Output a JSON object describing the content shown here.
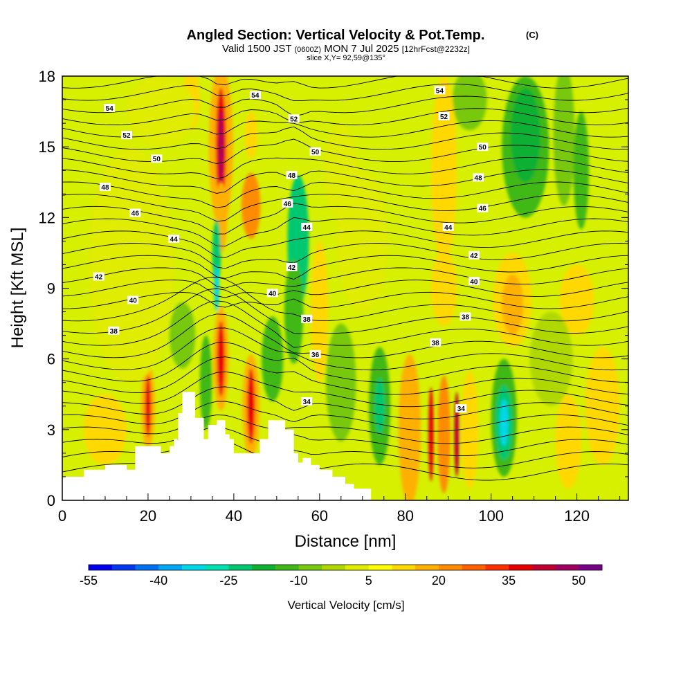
{
  "title_main": "Angled Section: Vertical Velocity & Pot.Temp.",
  "title_copyright": "(C)",
  "subtitle_valid": "Valid 1500 JST",
  "subtitle_utc": "(0600Z)",
  "subtitle_date": "MON 7 Jul 2025",
  "subtitle_fcst": "[12hrFcst@2232z]",
  "slice_label": "slice X,Y= 92,59@135°",
  "chart_data": {
    "type": "heatmap",
    "xlabel": "Distance [nm]",
    "ylabel": "Height [Kft MSL]",
    "xlim": [
      0,
      132
    ],
    "ylim": [
      0,
      18
    ],
    "xticks": [
      0,
      20,
      40,
      60,
      80,
      100,
      120
    ],
    "yticks": [
      0,
      3,
      6,
      9,
      12,
      15,
      18
    ],
    "colorbar": {
      "label": "Vertical Velocity [cm/s]",
      "min": -55,
      "max": 55,
      "step": 5,
      "tick_labels": [
        "-55",
        "-40",
        "-25",
        "-10",
        "5",
        "20",
        "35",
        "50"
      ],
      "tick_values": [
        -55,
        -40,
        -25,
        -10,
        5,
        20,
        35,
        50
      ],
      "colors": [
        "#0000ee",
        "#0038f0",
        "#0070f2",
        "#00a8f4",
        "#00d8e8",
        "#00e0b0",
        "#00c870",
        "#10b030",
        "#40b818",
        "#78c810",
        "#b0d800",
        "#e0ec00",
        "#ffff00",
        "#ffd800",
        "#ffb000",
        "#ff8c00",
        "#ff6000",
        "#ff3000",
        "#e80000",
        "#c00030",
        "#a00060",
        "#780088"
      ]
    },
    "theta_contours": {
      "levels": [
        34,
        36,
        38,
        40,
        42,
        44,
        46,
        48,
        50,
        52,
        54
      ],
      "labels": [
        {
          "text": "54",
          "x": 11,
          "y": 16.65
        },
        {
          "text": "52",
          "x": 15,
          "y": 15.5
        },
        {
          "text": "50",
          "x": 22,
          "y": 14.5
        },
        {
          "text": "48",
          "x": 10,
          "y": 13.3
        },
        {
          "text": "46",
          "x": 17,
          "y": 12.2
        },
        {
          "text": "44",
          "x": 26,
          "y": 11.1
        },
        {
          "text": "42",
          "x": 8.5,
          "y": 9.5
        },
        {
          "text": "40",
          "x": 16.5,
          "y": 8.5
        },
        {
          "text": "38",
          "x": 12,
          "y": 7.2
        },
        {
          "text": "54",
          "x": 45,
          "y": 17.2
        },
        {
          "text": "52",
          "x": 54,
          "y": 16.2
        },
        {
          "text": "50",
          "x": 59,
          "y": 14.8
        },
        {
          "text": "48",
          "x": 53.5,
          "y": 13.8
        },
        {
          "text": "46",
          "x": 52.5,
          "y": 12.6
        },
        {
          "text": "44",
          "x": 57,
          "y": 11.6
        },
        {
          "text": "42",
          "x": 53.5,
          "y": 9.9
        },
        {
          "text": "40",
          "x": 49,
          "y": 8.8
        },
        {
          "text": "38",
          "x": 57,
          "y": 7.7
        },
        {
          "text": "36",
          "x": 59,
          "y": 6.2
        },
        {
          "text": "34",
          "x": 57,
          "y": 4.2
        },
        {
          "text": "54",
          "x": 88,
          "y": 17.4
        },
        {
          "text": "52",
          "x": 89,
          "y": 16.3
        },
        {
          "text": "50",
          "x": 98,
          "y": 15
        },
        {
          "text": "48",
          "x": 97,
          "y": 13.7
        },
        {
          "text": "46",
          "x": 98,
          "y": 12.4
        },
        {
          "text": "44",
          "x": 90,
          "y": 11.6
        },
        {
          "text": "42",
          "x": 96,
          "y": 10.4
        },
        {
          "text": "40",
          "x": 96,
          "y": 9.3
        },
        {
          "text": "38",
          "x": 94,
          "y": 7.8
        },
        {
          "text": "38",
          "x": 87,
          "y": 6.7
        },
        {
          "text": "34",
          "x": 93,
          "y": 3.9
        }
      ]
    }
  }
}
